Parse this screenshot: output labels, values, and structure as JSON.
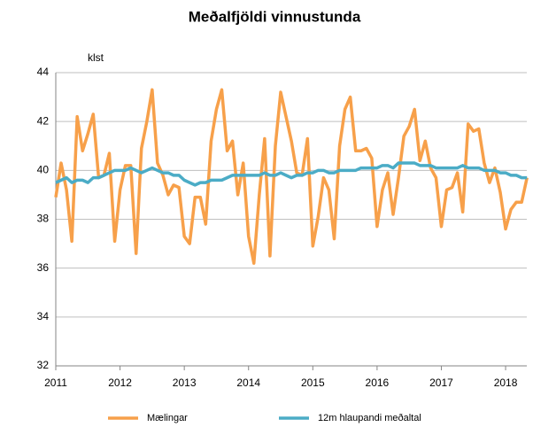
{
  "chart_data": {
    "type": "line",
    "title": "Meðalfjöldi  vinnustunda",
    "y_axis_label": "klst",
    "x": [
      2011,
      2011.083,
      2011.167,
      2011.25,
      2011.333,
      2011.417,
      2011.5,
      2011.583,
      2011.667,
      2011.75,
      2011.833,
      2011.917,
      2012,
      2012.083,
      2012.167,
      2012.25,
      2012.333,
      2012.417,
      2012.5,
      2012.583,
      2012.667,
      2012.75,
      2012.833,
      2012.917,
      2013,
      2013.083,
      2013.167,
      2013.25,
      2013.333,
      2013.417,
      2013.5,
      2013.583,
      2013.667,
      2013.75,
      2013.833,
      2013.917,
      2014,
      2014.083,
      2014.167,
      2014.25,
      2014.333,
      2014.417,
      2014.5,
      2014.583,
      2014.667,
      2014.75,
      2014.833,
      2014.917,
      2015,
      2015.083,
      2015.167,
      2015.25,
      2015.333,
      2015.417,
      2015.5,
      2015.583,
      2015.667,
      2015.75,
      2015.833,
      2015.917,
      2016,
      2016.083,
      2016.167,
      2016.25,
      2016.333,
      2016.417,
      2016.5,
      2016.583,
      2016.667,
      2016.75,
      2016.833,
      2016.917,
      2017,
      2017.083,
      2017.167,
      2017.25,
      2017.333,
      2017.417,
      2017.5,
      2017.583,
      2017.667,
      2017.75,
      2017.833,
      2017.917,
      2018,
      2018.083,
      2018.167,
      2018.25,
      2018.333
    ],
    "series": [
      {
        "name": "Mælingar",
        "color": "#f7a04a",
        "values": [
          38.9,
          40.3,
          39.2,
          37.1,
          42.2,
          40.8,
          41.5,
          42.3,
          39.7,
          39.8,
          40.7,
          37.1,
          39.2,
          40.2,
          40.2,
          36.6,
          40.9,
          42.0,
          43.3,
          40.3,
          39.8,
          39.0,
          39.4,
          39.3,
          37.3,
          37.0,
          38.9,
          38.9,
          37.8,
          41.2,
          42.5,
          43.3,
          40.8,
          41.2,
          39.0,
          40.3,
          37.3,
          36.2,
          39.0,
          41.3,
          36.5,
          41.0,
          43.2,
          42.2,
          41.2,
          39.9,
          39.8,
          41.3,
          36.9,
          38.1,
          39.7,
          39.2,
          37.2,
          41.0,
          42.5,
          43.0,
          40.8,
          40.8,
          40.9,
          40.5,
          37.7,
          39.2,
          39.9,
          38.2,
          39.7,
          41.4,
          41.8,
          42.5,
          40.4,
          41.2,
          40.1,
          39.7,
          37.7,
          39.2,
          39.3,
          39.9,
          38.3,
          41.9,
          41.6,
          41.7,
          40.3,
          39.5,
          40.1,
          39.1,
          37.6,
          38.4,
          38.7,
          38.7,
          39.7
        ]
      },
      {
        "name": "12m hlaupandi meðaltal",
        "color": "#4bacc6",
        "values": [
          39.5,
          39.6,
          39.7,
          39.5,
          39.6,
          39.6,
          39.5,
          39.7,
          39.7,
          39.8,
          39.9,
          40.0,
          40.0,
          40.0,
          40.1,
          40.0,
          39.9,
          40.0,
          40.1,
          40.0,
          39.9,
          39.9,
          39.8,
          39.8,
          39.6,
          39.5,
          39.4,
          39.5,
          39.5,
          39.6,
          39.6,
          39.6,
          39.7,
          39.8,
          39.8,
          39.8,
          39.8,
          39.8,
          39.8,
          39.9,
          39.8,
          39.8,
          39.9,
          39.8,
          39.7,
          39.8,
          39.8,
          39.9,
          39.9,
          40.0,
          40.0,
          39.9,
          39.9,
          40.0,
          40.0,
          40.0,
          40.0,
          40.1,
          40.1,
          40.1,
          40.1,
          40.2,
          40.2,
          40.1,
          40.3,
          40.3,
          40.3,
          40.3,
          40.2,
          40.2,
          40.2,
          40.1,
          40.1,
          40.1,
          40.1,
          40.1,
          40.2,
          40.1,
          40.1,
          40.1,
          40.0,
          40.0,
          40.0,
          39.9,
          39.9,
          39.8,
          39.8,
          39.7,
          39.7
        ]
      }
    ],
    "xlim": [
      2011,
      2018.33
    ],
    "xticks": [
      2011,
      2012,
      2013,
      2014,
      2015,
      2016,
      2017,
      2018
    ],
    "ylim": [
      32,
      44
    ],
    "yticks": [
      32,
      34,
      36,
      38,
      40,
      42,
      44
    ],
    "grid": true,
    "legend": "bottom"
  }
}
